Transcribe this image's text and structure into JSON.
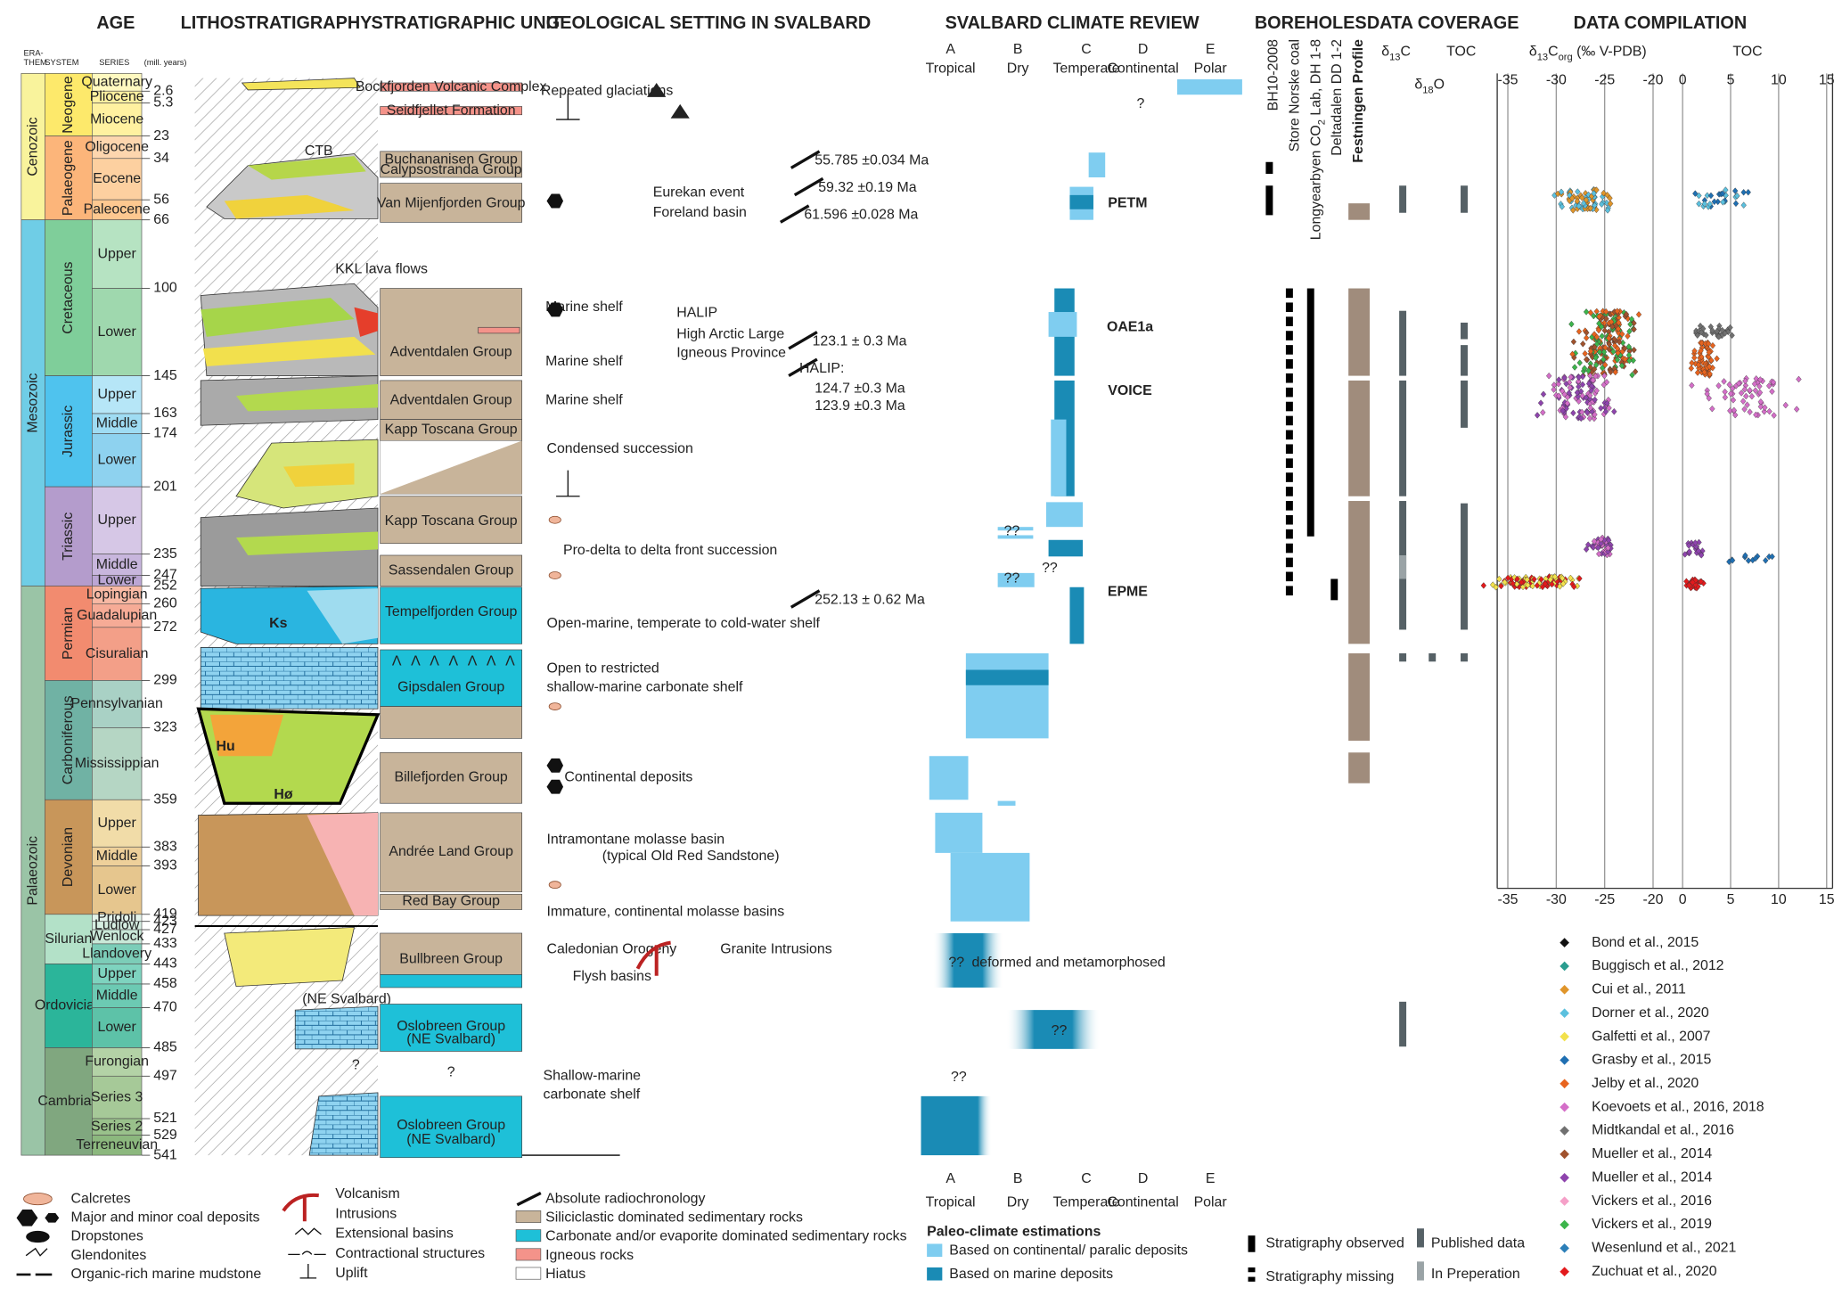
{
  "headers": {
    "age": "AGE",
    "litho": "LITHOSTRATIGRAPHY",
    "unit": "STRATIGRAPHIC UNIT",
    "setting": "GEOLOGICAL SETTING IN SVALBARD",
    "climate": "SVALBARD CLIMATE REVIEW",
    "boreholes": "BOREHOLES",
    "coverage": "DATA COVERAGE",
    "compilation": "DATA COMPILATION"
  },
  "age_columns": [
    "ERA-",
    "THEM",
    "SYSTEM",
    "SERIES",
    "(mill. years)"
  ],
  "erathems": [
    "Cenozoic",
    "Mesozoic",
    "Palaeozoic"
  ],
  "systems": [
    "Neogene",
    "Palaeogene",
    "Cretaceous",
    "Jurassic",
    "Triassic",
    "Permian",
    "Carboniferous",
    "Devonian",
    "Silurian",
    "Ordovician",
    "Cambrian"
  ],
  "series": [
    "Quaternary",
    "Pliocene",
    "Miocene",
    "Oligocene",
    "Eocene",
    "Paleocene",
    "Upper",
    "Lower",
    "Upper",
    "Middle",
    "Lower",
    "Upper",
    "Middle",
    "Lower",
    "Lopingian",
    "Guadalupian",
    "Cisuralian",
    "Pennsylvanian",
    "Mississippian",
    "Upper",
    "Middle",
    "Lower",
    "Pridoli",
    "Ludlow",
    "Wenlock",
    "Llandovery",
    "Upper",
    "Middle",
    "Lower",
    "Furongian",
    "Series 3",
    "Series 2",
    "Terreneuvian"
  ],
  "ages": [
    "2.6",
    "5.3",
    "23",
    "34",
    "56",
    "66",
    "100",
    "145",
    "163",
    "174",
    "201",
    "235",
    "247",
    "252",
    "260",
    "272",
    "299",
    "323",
    "359",
    "383",
    "393",
    "419",
    "423",
    "427",
    "433",
    "443",
    "458",
    "470",
    "485",
    "497",
    "521",
    "529",
    "541"
  ],
  "litho_labels": [
    "CTB",
    "KKL lava flows",
    "Ks",
    "Hu",
    "Hø",
    "(NE Svalbard)",
    "?"
  ],
  "units": [
    "Bockfjorden Volcanic Complex",
    "Seidfjellet Formation",
    "Buchananisen Group",
    "Calypsostranda Group",
    "Van Mijenfjorden Group",
    "Adventdalen Group",
    "Adventdalen Group",
    "Kapp Toscana Group",
    "Kapp Toscana Group",
    "Sassendalen Group",
    "Tempelfjorden Group",
    "Gipsdalen Group",
    "Billefjorden Group",
    "Andrée Land Group",
    "Red Bay Group",
    "Bullbreen Group",
    "Oslobreen Group",
    "(NE Svalbard)",
    "?",
    "Oslobreen Group",
    "(NE Svalbard)"
  ],
  "setting": [
    "Repeated glaciations",
    "Eurekan event",
    "Foreland basin",
    "Marine shelf",
    "HALIP",
    "High Arctic Large",
    "Igneous Province",
    "Marine shelf",
    "Marine shelf",
    "Condensed succession",
    "Pro-delta to delta front succession",
    "Open-marine, temperate to cold-water shelf",
    "Open to restricted",
    "shallow-marine carbonate shelf",
    "Continental deposits",
    "Intramontane molasse basin",
    "(typical Old Red Sandstone)",
    "Immature, continental molasse basins",
    "Caledonian Orogeny",
    "Granite Intrusions",
    "Flysh basins",
    "Shallow-marine",
    "carbonate shelf"
  ],
  "radiochronology": [
    "55.785 ±0.034 Ma",
    "59.32 ±0.19 Ma",
    "61.596 ±0.028 Ma",
    "123.1 ± 0.3 Ma",
    "HALIP:",
    "124.7 ±0.3 Ma",
    "123.9 ±0.3 Ma",
    "252.13 ± 0.62 Ma"
  ],
  "climate": {
    "columns": [
      {
        "letter": "A",
        "name": "Tropical"
      },
      {
        "letter": "B",
        "name": "Dry"
      },
      {
        "letter": "C",
        "name": "Temperate"
      },
      {
        "letter": "D",
        "name": "Continental"
      },
      {
        "letter": "E",
        "name": "Polar"
      }
    ],
    "events": [
      "PETM",
      "OAE1a",
      "VOICE",
      "EPME"
    ],
    "uncertain": [
      "?",
      "??",
      "??",
      "??",
      "??",
      "??",
      "??"
    ],
    "deformed": "deformed and metamorphosed"
  },
  "boreholes": [
    [
      "BH10-2008"
    ],
    [
      "Store Norske coal"
    ],
    [
      "Longyearbyen CO",
      "2",
      " Lab, DH 1-8"
    ],
    [
      "Deltadalen DD 1-2"
    ],
    [
      "Festningen Profile"
    ]
  ],
  "coverage": {
    "d13c": [
      "δ",
      "13",
      "C"
    ],
    "toc": "TOC",
    "d18o": [
      "δ",
      "18",
      "O"
    ]
  },
  "compilation": {
    "d13c_title": [
      "δ",
      "13",
      "C",
      "org",
      " (‰ V-PDB)"
    ],
    "toc_title": "TOC",
    "d13c_ticks": [
      -35,
      -30,
      -25,
      -20
    ],
    "toc_ticks": [
      0,
      5,
      10,
      15
    ],
    "references": [
      {
        "name": "Bond et al., 2015",
        "color": "#111111"
      },
      {
        "name": "Buggisch et al., 2012",
        "color": "#2a9d8f"
      },
      {
        "name": "Cui et al., 2011",
        "color": "#e0952a"
      },
      {
        "name": "Dorner et al., 2020",
        "color": "#5bc0de"
      },
      {
        "name": "Galfetti et al., 2007",
        "color": "#f2e14c"
      },
      {
        "name": "Grasby et al., 2015",
        "color": "#1f6fb2"
      },
      {
        "name": "Jelby et al., 2020",
        "color": "#e8641e"
      },
      {
        "name": "Koevoets et al., 2016, 2018",
        "color": "#d46ec8"
      },
      {
        "name": "Midtkandal et al., 2016",
        "color": "#707070"
      },
      {
        "name": "Mueller et al., 2014",
        "color": "#a0522d"
      },
      {
        "name": "Mueller et al., 2014",
        "color": "#8e44ad"
      },
      {
        "name": "Vickers et al., 2016",
        "color": "#f5a0c8"
      },
      {
        "name": "Vickers et al., 2019",
        "color": "#3cb44b"
      },
      {
        "name": "Wesenlund et al., 2021",
        "color": "#2c7fb8"
      },
      {
        "name": "Zuchuat et al., 2020",
        "color": "#e31a1c"
      }
    ]
  },
  "legend": {
    "symbols": [
      "Calcretes",
      "Major and minor coal deposits",
      "Dropstones",
      "Glendonites",
      "Organic-rich marine mudstone"
    ],
    "structures": [
      "Volcanism",
      "Intrusions",
      "Extensional basins",
      "Contractional structures",
      "Uplift"
    ],
    "rocks": [
      "Absolute radiochronology",
      "Siliciclastic dominated sedimentary rocks",
      "Carbonate and/or evaporite dominated sedimentary rocks",
      "Igneous rocks",
      "Hiatus"
    ],
    "climate_title": "Paleo-climate estimations",
    "climate": [
      "Based on continental/ paralic deposits",
      "Based on marine deposits"
    ],
    "boreholes": [
      "Stratigraphy observed",
      "Stratigraphy missing",
      "Published data",
      "In Preperation"
    ]
  }
}
